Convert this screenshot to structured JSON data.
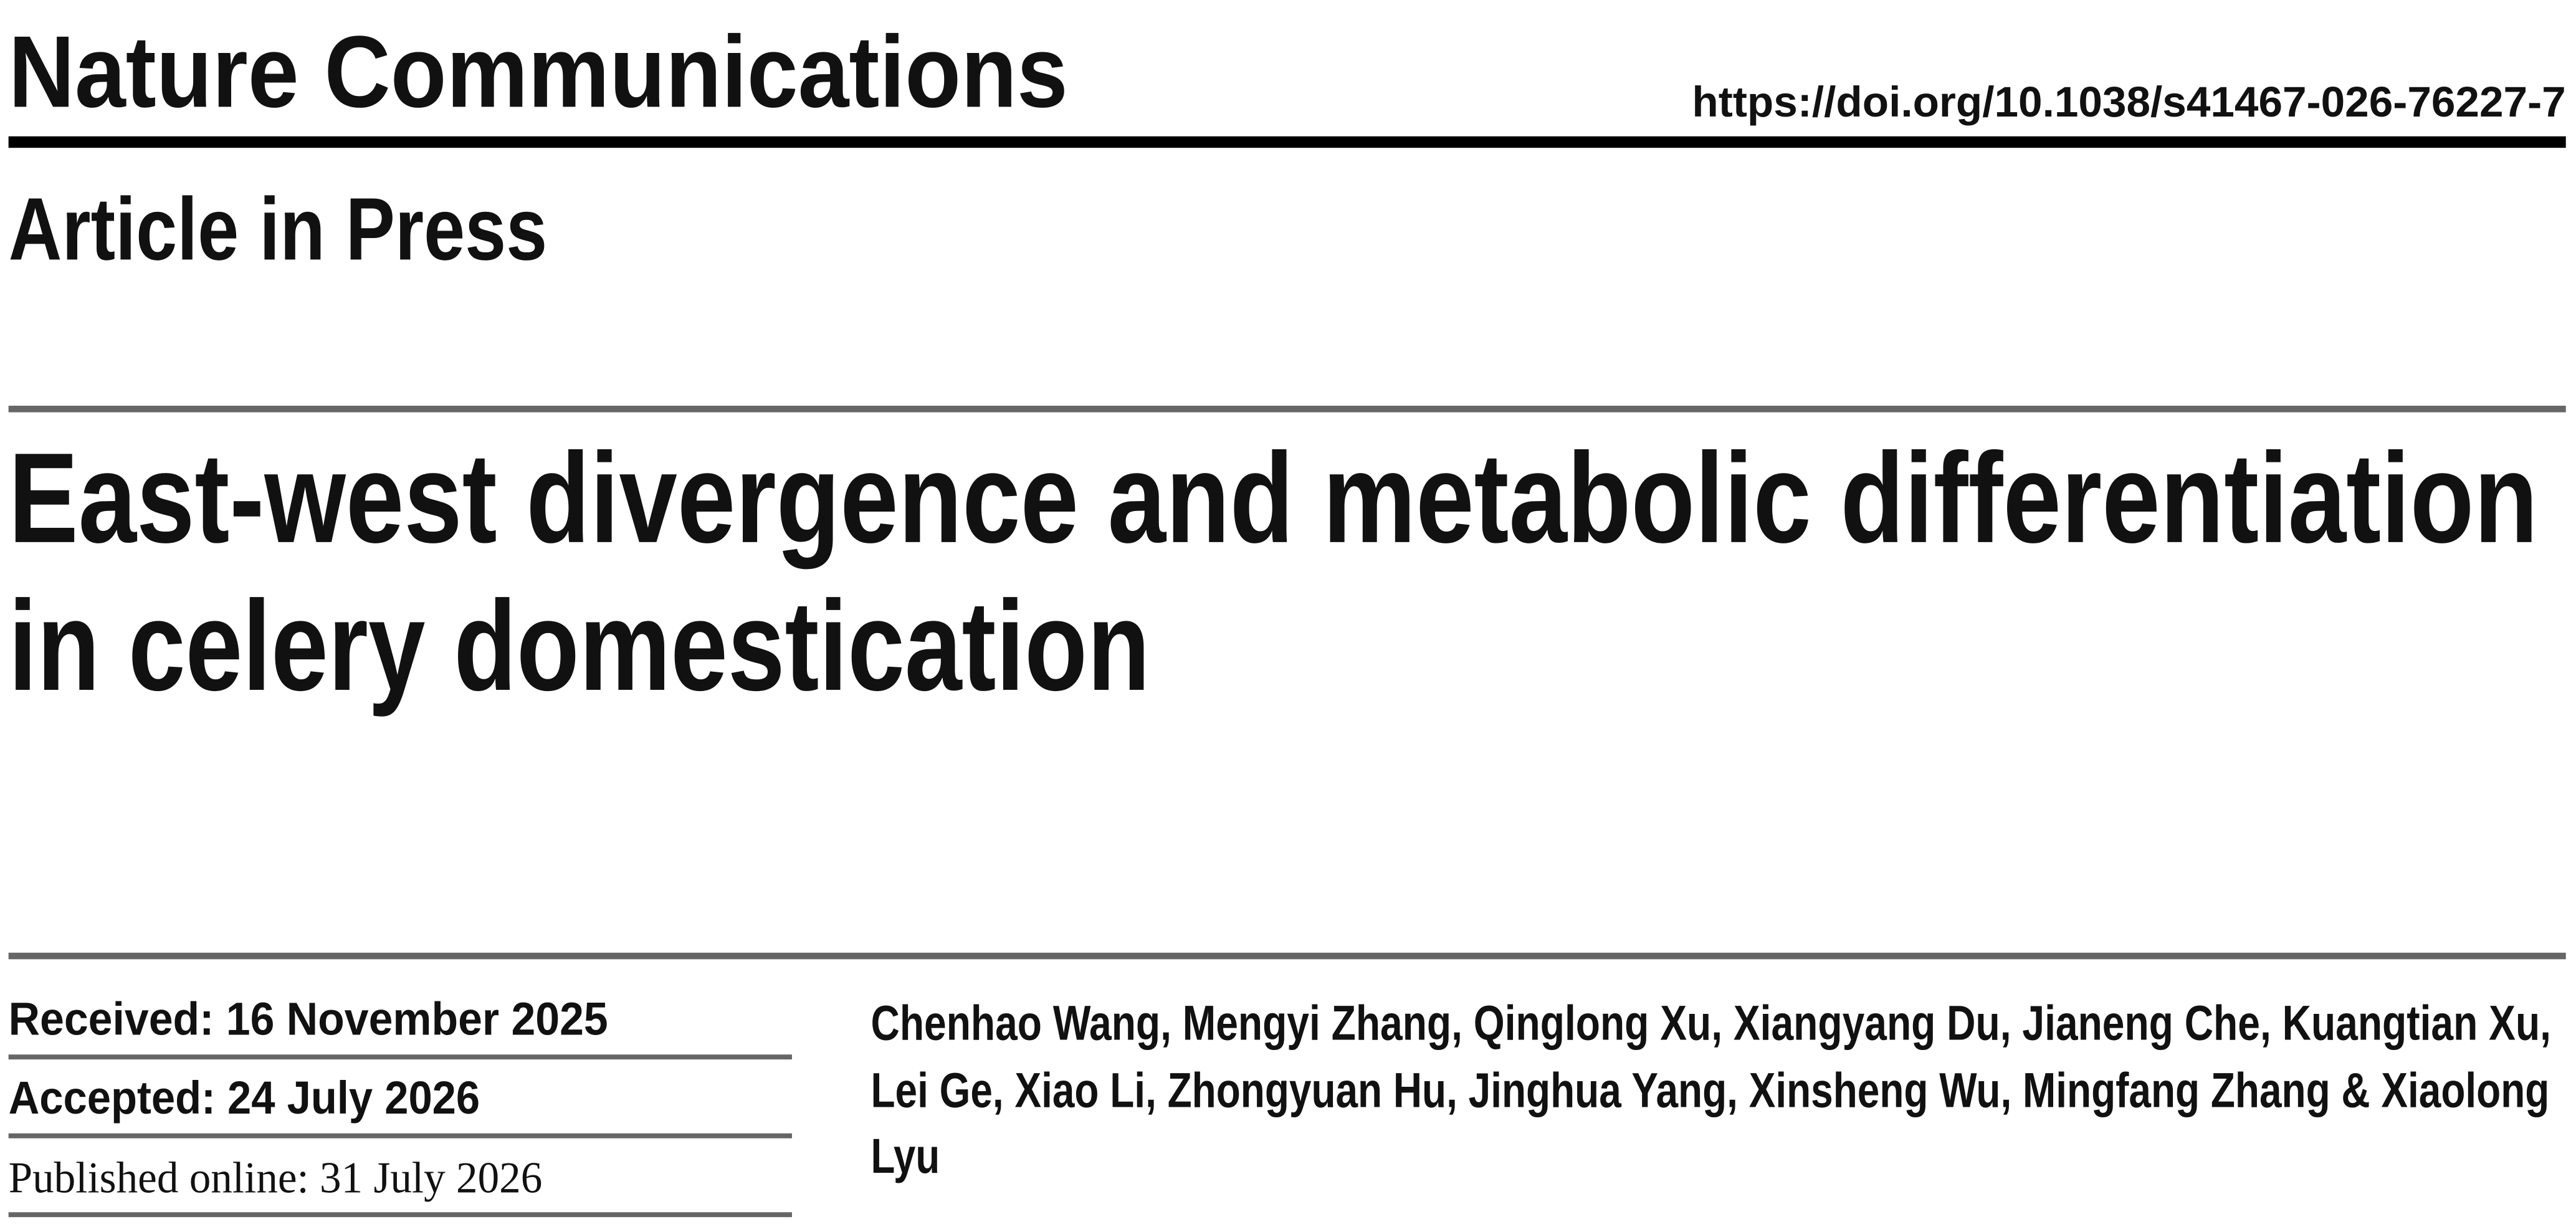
{
  "header": {
    "journal": "Nature Communications",
    "doi": "https://doi.org/10.1038/s41467-026-76227-7",
    "status": "Article in Press"
  },
  "article": {
    "title_lines": [
      "East-west divergence and metabolic differentiation",
      "in celery domestication"
    ],
    "dates": {
      "received": "Received: 16 November 2025",
      "accepted": "Accepted: 24 July 2026",
      "published": "Published online: 31 July 2026"
    },
    "author_lines": [
      "Chenhao Wang, Mengyi Zhang, Qinglong Xu, Xiangyang Du, Jianeng Che, Kuangtian Xu,",
      "Lei Ge, Xiao Li, Zhongyuan Hu, Jinghua Yang, Xinsheng Wu, Mingfang Zhang & Xiaolong",
      "Lyu"
    ]
  }
}
